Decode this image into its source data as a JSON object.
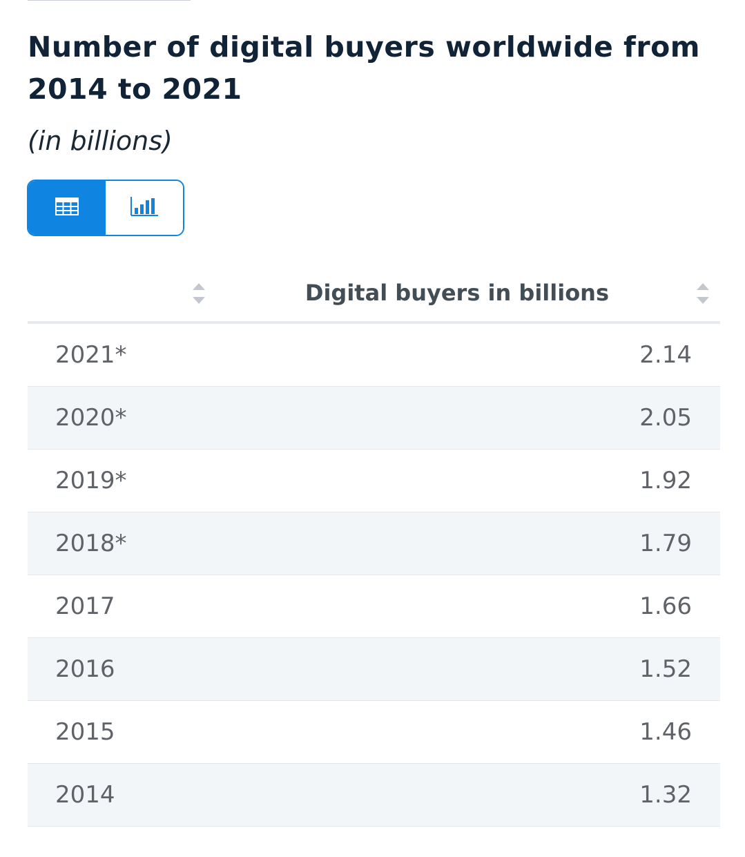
{
  "title": "Number of digital buyers worldwide from 2014 to 2021",
  "subtitle": "(in billions)",
  "view_toggle": {
    "options": [
      {
        "name": "table-view",
        "icon": "table-icon",
        "active": true
      },
      {
        "name": "chart-view",
        "icon": "bar-chart-icon",
        "active": false
      }
    ]
  },
  "table": {
    "columns": [
      "",
      "Digital buyers in billions"
    ],
    "rows": [
      {
        "year": "2021*",
        "value": "2.14"
      },
      {
        "year": "2020*",
        "value": "2.05"
      },
      {
        "year": "2019*",
        "value": "1.92"
      },
      {
        "year": "2018*",
        "value": "1.79"
      },
      {
        "year": "2017",
        "value": "1.66"
      },
      {
        "year": "2016",
        "value": "1.52"
      },
      {
        "year": "2015",
        "value": "1.46"
      },
      {
        "year": "2014",
        "value": "1.32"
      }
    ]
  },
  "colors": {
    "accent": "#0f84e0",
    "title": "#112337",
    "row_alt": "#f3f6f9",
    "cell_text": "#5f6368"
  }
}
